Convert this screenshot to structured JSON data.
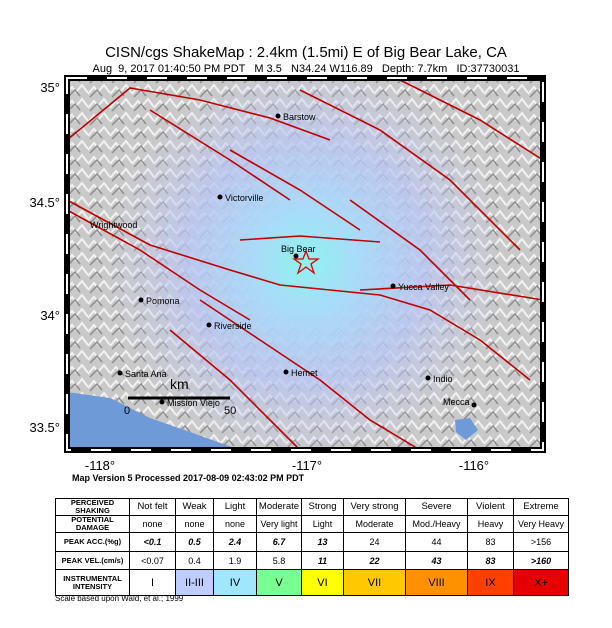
{
  "header": {
    "title": "CISN/cgs ShakeMap : 2.4km (1.5mi) E of Big Bear Lake, CA",
    "subtitle": "Aug  9, 2017 01:40:50 PM PDT   M 3.5   N34.24 W116.89   Depth: 7.7km   ID:37730031"
  },
  "map": {
    "lat_labels": [
      "35°",
      "34.5°",
      "34°",
      "33.5°"
    ],
    "lon_labels": [
      "-118°",
      "-117°",
      "-116°"
    ],
    "cities": [
      "Barstow",
      "Victorville",
      "Wrightwood",
      "Big Bear",
      "Yucca Valley",
      "Pomona",
      "Riverside",
      "Santa Ana",
      "Hemet",
      "Indio",
      "Mecca",
      "Mission Viejo"
    ],
    "scale": {
      "unit": "km",
      "labels": [
        "0",
        "50"
      ]
    }
  },
  "footer": "Map Version 5 Processed 2017-08-09 02:43:02 PM PDT",
  "table": {
    "rows": [
      [
        "PERCEIVED SHAKING",
        "Not felt",
        "Weak",
        "Light",
        "Moderate",
        "Strong",
        "Very strong",
        "Severe",
        "Violent",
        "Extreme"
      ],
      [
        "POTENTIAL DAMAGE",
        "none",
        "none",
        "none",
        "Very light",
        "Light",
        "Moderate",
        "Mod./Heavy",
        "Heavy",
        "Very Heavy"
      ],
      [
        "PEAK ACC.(%g)",
        "<0.1",
        "0.5",
        "2.4",
        "6.7",
        "13",
        "24",
        "44",
        "83",
        ">156"
      ],
      [
        "PEAK VEL.(cm/s)",
        "<0.07",
        "0.4",
        "1.9",
        "5.8",
        "11",
        "22",
        "43",
        "83",
        ">160"
      ],
      [
        "INSTRUMENTAL INTENSITY",
        "I",
        "II-III",
        "IV",
        "V",
        "VI",
        "VII",
        "VIII",
        "IX",
        "X+"
      ]
    ]
  },
  "note": "Scale based upon Wald, et al.; 1999"
}
